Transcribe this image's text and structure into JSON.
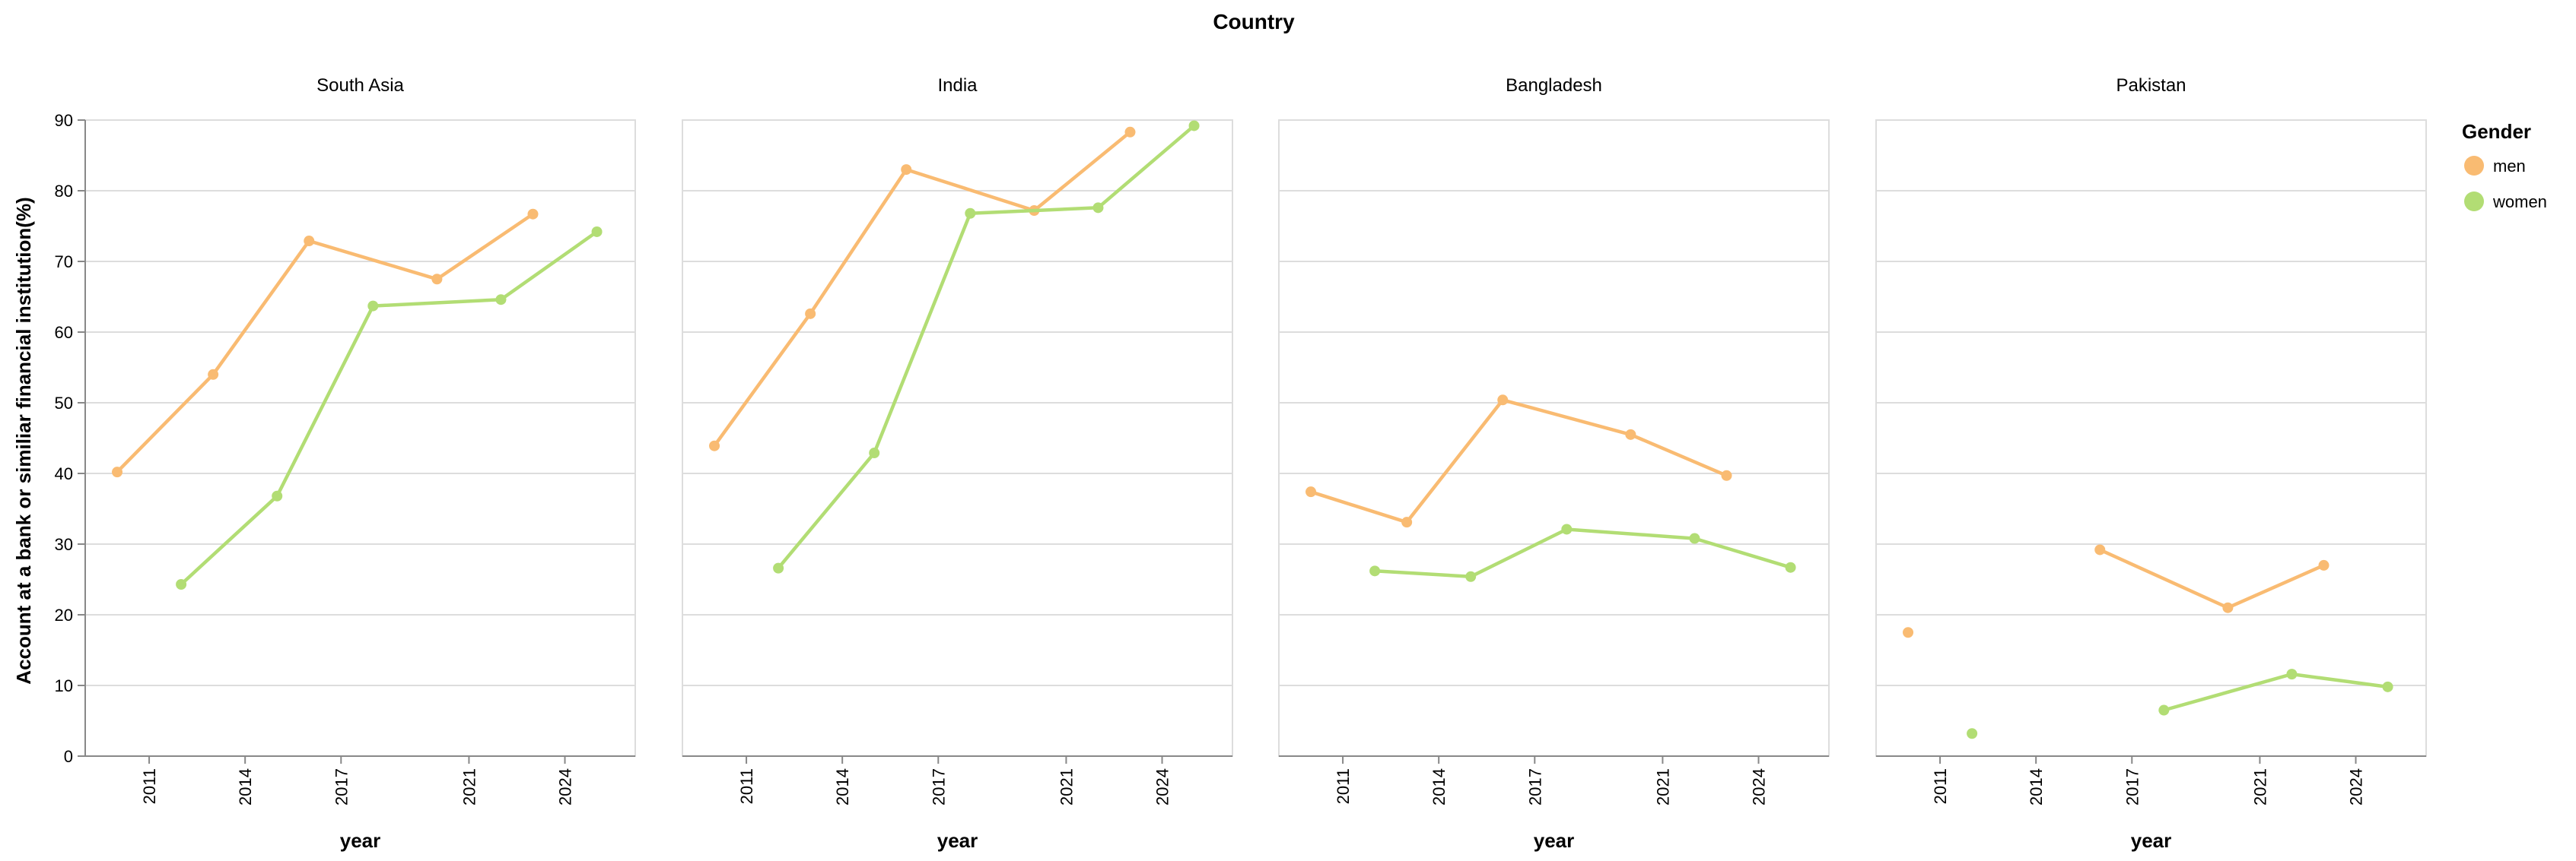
{
  "chart_data": {
    "type": "line",
    "title": "Country",
    "xlabel": "year",
    "ylabel": "Account at a bank or similiar financial institution(%)",
    "ylim": [
      0,
      90
    ],
    "yticks": [
      0,
      10,
      20,
      30,
      40,
      50,
      60,
      70,
      80,
      90
    ],
    "xticks": [
      "2011",
      "2014",
      "2017",
      "2021",
      "2024"
    ],
    "legend": {
      "title": "Gender",
      "position": "right",
      "items": [
        {
          "name": "men",
          "color": "#f9bb72"
        },
        {
          "name": "women",
          "color": "#b2dd74"
        }
      ]
    },
    "facets": [
      {
        "title": "South Asia",
        "series": [
          {
            "name": "men",
            "points": [
              {
                "x": 2010,
                "y": 40.2
              },
              {
                "x": 2013,
                "y": 54.0
              },
              {
                "x": 2016,
                "y": 72.9
              },
              {
                "x": 2020,
                "y": 67.5
              },
              {
                "x": 2023,
                "y": 76.7
              }
            ]
          },
          {
            "name": "women",
            "points": [
              {
                "x": 2012,
                "y": 24.3
              },
              {
                "x": 2015,
                "y": 36.8
              },
              {
                "x": 2018,
                "y": 63.7
              },
              {
                "x": 2022,
                "y": 64.6
              },
              {
                "x": 2025,
                "y": 74.2
              }
            ]
          }
        ]
      },
      {
        "title": "India",
        "series": [
          {
            "name": "men",
            "points": [
              {
                "x": 2010,
                "y": 43.9
              },
              {
                "x": 2013,
                "y": 62.6
              },
              {
                "x": 2016,
                "y": 83.0
              },
              {
                "x": 2020,
                "y": 77.2
              },
              {
                "x": 2023,
                "y": 88.3
              }
            ]
          },
          {
            "name": "women",
            "points": [
              {
                "x": 2012,
                "y": 26.6
              },
              {
                "x": 2015,
                "y": 42.9
              },
              {
                "x": 2018,
                "y": 76.8
              },
              {
                "x": 2022,
                "y": 77.6
              },
              {
                "x": 2025,
                "y": 89.2
              }
            ]
          }
        ]
      },
      {
        "title": "Bangladesh",
        "series": [
          {
            "name": "men",
            "points": [
              {
                "x": 2010,
                "y": 37.4
              },
              {
                "x": 2013,
                "y": 33.1
              },
              {
                "x": 2016,
                "y": 50.4
              },
              {
                "x": 2020,
                "y": 45.5
              },
              {
                "x": 2023,
                "y": 39.7
              }
            ]
          },
          {
            "name": "women",
            "points": [
              {
                "x": 2012,
                "y": 26.2
              },
              {
                "x": 2015,
                "y": 25.4
              },
              {
                "x": 2018,
                "y": 32.1
              },
              {
                "x": 2022,
                "y": 30.8
              },
              {
                "x": 2025,
                "y": 26.7
              }
            ]
          }
        ]
      },
      {
        "title": "Pakistan",
        "series": [
          {
            "name": "men",
            "points": [
              {
                "x": 2010,
                "y": 17.5
              }
            ],
            "segments": [
              [
                {
                  "x": 2016,
                  "y": 29.2
                },
                {
                  "x": 2020,
                  "y": 21.0
                },
                {
                  "x": 2023,
                  "y": 27.0
                }
              ]
            ]
          },
          {
            "name": "women",
            "points": [
              {
                "x": 2012,
                "y": 3.2
              }
            ],
            "segments": [
              [
                {
                  "x": 2018,
                  "y": 6.5
                },
                {
                  "x": 2022,
                  "y": 11.6
                },
                {
                  "x": 2025,
                  "y": 9.8
                }
              ]
            ]
          }
        ]
      }
    ]
  }
}
